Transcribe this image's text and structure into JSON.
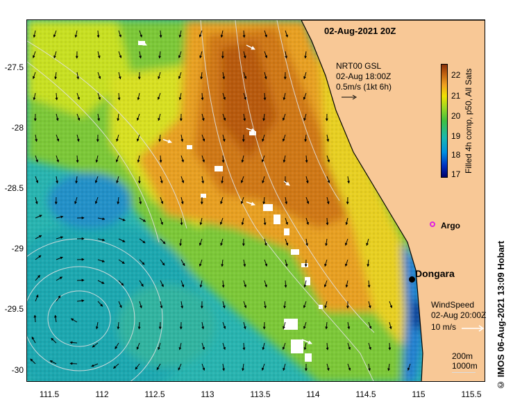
{
  "timestamp": "02-Aug-2021 20Z",
  "current_legend": {
    "title": "NRT00 GSL",
    "time": "02-Aug 18:00Z",
    "scale": "0.5m/s (1kt 6h)"
  },
  "colorbar": {
    "title": "Filled 4h comp, p50, All Sats",
    "ticks": [
      "22",
      "21",
      "20",
      "19",
      "18",
      "17"
    ]
  },
  "wind_legend": {
    "title": "WindSpeed",
    "time": "02-Aug 20:00Z",
    "scale": "10 m/s"
  },
  "contour_legend": {
    "line1": "200m",
    "line2": "1000m"
  },
  "places": {
    "argo": "Argo",
    "dongara": "Dongara"
  },
  "y_axis": [
    "-27.5",
    "-28",
    "-28.5",
    "-29",
    "-29.5",
    "-30"
  ],
  "x_axis": [
    "111.5",
    "112",
    "112.5",
    "113",
    "113.5",
    "114",
    "114.5",
    "115",
    "115.5"
  ],
  "copyright": "© IMOS 06-Aug-2021 13:09 Hobart",
  "colors": {
    "land": "#f8c896",
    "warm": "#c86414",
    "mid": "#90d030",
    "cool": "#20b4b4",
    "argo": "#e020e0"
  }
}
